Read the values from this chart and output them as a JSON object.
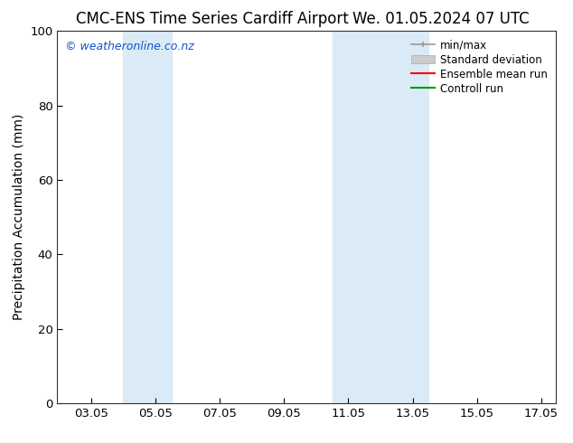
{
  "title_left": "CMC-ENS Time Series Cardiff Airport",
  "title_right": "We. 01.05.2024 07 UTC",
  "ylabel": "Precipitation Accumulation (mm)",
  "watermark": "© weatheronline.co.nz",
  "watermark_color": "#1155cc",
  "ylim": [
    0,
    100
  ],
  "yticks": [
    0,
    20,
    40,
    60,
    80,
    100
  ],
  "xlim_start": 2.0,
  "xlim_end": 17.5,
  "xtick_positions": [
    3.05,
    5.05,
    7.05,
    9.05,
    11.05,
    13.05,
    15.05,
    17.05
  ],
  "xtick_labels": [
    "03.05",
    "05.05",
    "07.05",
    "09.05",
    "11.05",
    "13.05",
    "15.05",
    "17.05"
  ],
  "shaded_bands": [
    {
      "x_start": 4.05,
      "x_end": 5.55
    },
    {
      "x_start": 10.55,
      "x_end": 13.55
    }
  ],
  "band_color": "#daeaf7",
  "legend_labels": [
    "min/max",
    "Standard deviation",
    "Ensemble mean run",
    "Controll run"
  ],
  "legend_colors": [
    "#999999",
    "#cccccc",
    "#ff0000",
    "#009900"
  ],
  "background_color": "#ffffff",
  "title_fontsize": 12,
  "axis_label_fontsize": 10,
  "tick_fontsize": 9.5,
  "watermark_fontsize": 9,
  "legend_fontsize": 8.5
}
